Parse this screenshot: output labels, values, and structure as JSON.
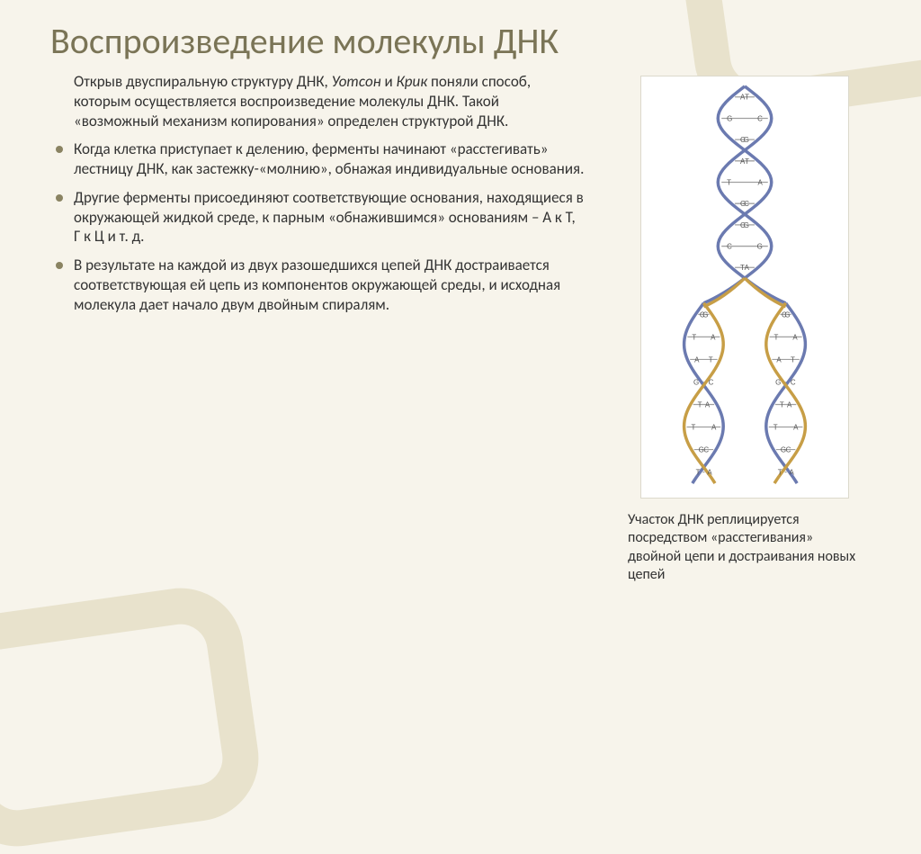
{
  "title": "Воспроизведение молекулы ДНК",
  "intro": {
    "lead": "Открыв двуспиральную структуру ДНК, ",
    "authors1": "Уотсон",
    "and": " и ",
    "authors2": "Крик",
    "rest": " поняли способ, которым осуществляется воспроизведение молекулы ДНК. Такой «возможный механизм копирования» определен структурой ДНК."
  },
  "bullets": [
    "Когда клетка приступает к делению, ферменты начинают «расстегивать» лестницу ДНК, как застежку-«молнию», обнажая индивидуальные основания.",
    "Другие ферменты присоединяют соответствующие основания, находящиеся в окружающей жидкой среде, к парным «обнажившимся» основаниям – А к Т, Г к Ц и т. д.",
    "В результате на каждой из двух разошедшихся цепей ДНК достраивается соответствующая ей цепь из компонентов окружающей среды, и исходная молекула дает начало двум двойным спиралям."
  ],
  "caption": "Участок ДНК реплицируется посредством «расстегивания» двойной цепи и достраивания новых цепей",
  "dna": {
    "strand_old_color": "#c79e46",
    "strand_new_color": "#6b7ab0",
    "rung_color": "#a0a0a0",
    "pairs_top": [
      [
        "A",
        "T"
      ],
      [
        "G",
        "C"
      ],
      [
        "C",
        "G"
      ],
      [
        "A",
        "T"
      ],
      [
        "T",
        "A"
      ],
      [
        "G",
        "C"
      ],
      [
        "C",
        "G"
      ],
      [
        "C",
        "G"
      ],
      [
        "T",
        "A"
      ]
    ],
    "pairs_fork_left": [
      [
        "G",
        "C"
      ],
      [
        "T",
        "A"
      ],
      [
        "A",
        "T"
      ],
      [
        "C",
        "G"
      ],
      [
        "T",
        "A"
      ],
      [
        "T",
        "A"
      ],
      [
        "G",
        "C"
      ],
      [
        "A",
        "T"
      ]
    ],
    "pairs_fork_right": [
      [
        "G",
        "C"
      ],
      [
        "T",
        "A"
      ],
      [
        "A",
        "T"
      ],
      [
        "C",
        "G"
      ],
      [
        "T",
        "A"
      ],
      [
        "T",
        "A"
      ],
      [
        "G",
        "C"
      ],
      [
        "A",
        "T"
      ]
    ]
  },
  "colors": {
    "background": "#f7f4eb",
    "decor": "#e6e0c9",
    "title": "#7a7456",
    "body_text": "#333333",
    "bullet_dot": "#8a8362"
  }
}
